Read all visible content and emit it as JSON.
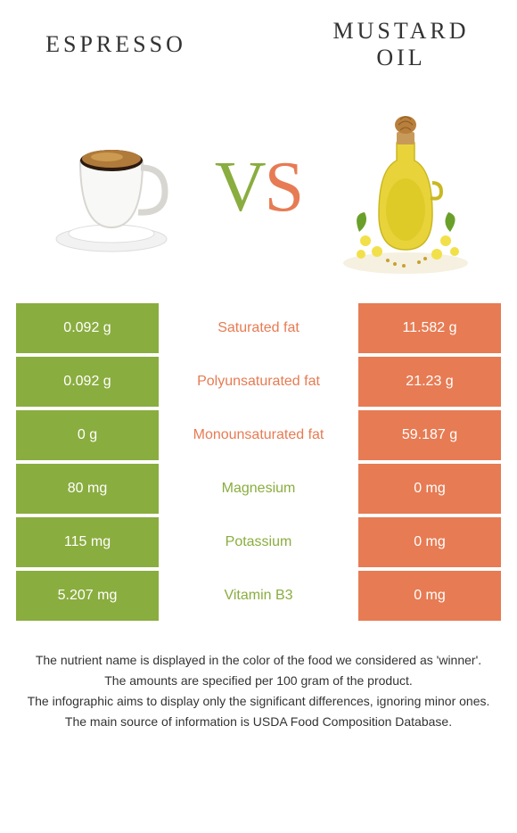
{
  "colors": {
    "left": "#8aad3f",
    "right": "#e77b53",
    "text": "#333333",
    "white": "#ffffff"
  },
  "titles": {
    "left": "ESPRESSO",
    "right": "MUSTARD OIL"
  },
  "vs": {
    "v": "V",
    "s": "S"
  },
  "rows": [
    {
      "left": "0.092 g",
      "label": "Saturated fat",
      "right": "11.582 g",
      "winner": "right"
    },
    {
      "left": "0.092 g",
      "label": "Polyunsaturated fat",
      "right": "21.23 g",
      "winner": "right"
    },
    {
      "left": "0 g",
      "label": "Monounsaturated fat",
      "right": "59.187 g",
      "winner": "right"
    },
    {
      "left": "80 mg",
      "label": "Magnesium",
      "right": "0 mg",
      "winner": "left"
    },
    {
      "left": "115 mg",
      "label": "Potassium",
      "right": "0 mg",
      "winner": "left"
    },
    {
      "left": "5.207 mg",
      "label": "Vitamin B3",
      "right": "0 mg",
      "winner": "left"
    }
  ],
  "footer": [
    "The nutrient name is displayed in the color of the food we considered as 'winner'.",
    "The amounts are specified per 100 gram of the product.",
    "The infographic aims to display only the significant differences, ignoring minor ones.",
    "The main source of information is USDA Food Composition Database."
  ]
}
